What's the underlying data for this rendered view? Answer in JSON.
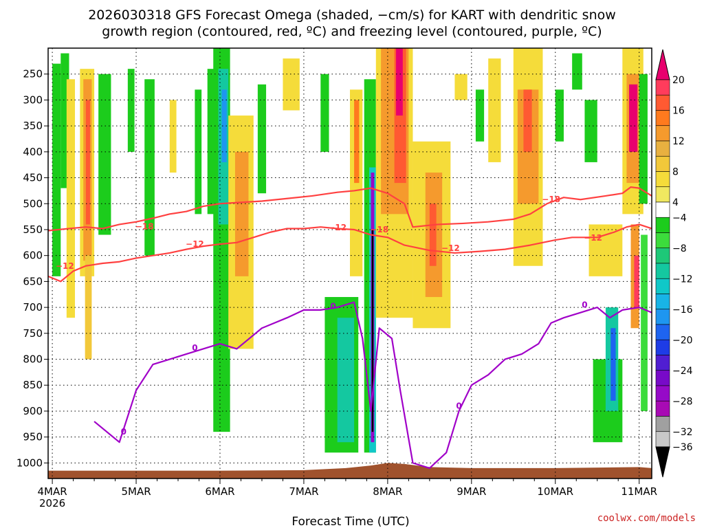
{
  "page": {
    "title_line1": "2026030318 GFS Forecast Omega (shaded, −cm/s) for KART with dendritic snow",
    "title_line2": "growth region (contoured, red, ºC) and freezing level (contoured, purple, ºC)",
    "credit": "coolwx.com/models"
  },
  "chart_data": {
    "type": "heatmap",
    "title": "2026030318 GFS Forecast Omega (shaded, −cm/s) for KART with dendritic snow growth region (contoured, red, ºC) and freezing level (contoured, purple, ºC)",
    "xlabel": "Forecast Time (UTC)",
    "ylabel": "",
    "y_axis": {
      "unit": "hPa",
      "range": [
        1030,
        200
      ],
      "ticks": [
        250,
        300,
        350,
        400,
        450,
        500,
        550,
        600,
        650,
        700,
        750,
        800,
        850,
        900,
        950,
        1000
      ]
    },
    "x_axis": {
      "unit": "days since 2026-03-04 00 UTC",
      "range": [
        -0.05,
        7.15
      ],
      "ticks": [
        {
          "value": 0,
          "label": "4MAR",
          "sublabel": "2026"
        },
        {
          "value": 1,
          "label": "5MAR"
        },
        {
          "value": 2,
          "label": "6MAR"
        },
        {
          "value": 3,
          "label": "7MAR"
        },
        {
          "value": 4,
          "label": "8MAR"
        },
        {
          "value": 5,
          "label": "9MAR"
        },
        {
          "value": 6,
          "label": "10MAR"
        },
        {
          "value": 7,
          "label": "11MAR"
        }
      ],
      "grid": true
    },
    "colorbar": {
      "labels": [
        "20",
        "16",
        "12",
        "8",
        "4",
        "−4",
        "−8",
        "−12",
        "−16",
        "−20",
        "−24",
        "−28",
        "−32",
        "−36"
      ],
      "bins": [
        {
          "min": 20,
          "max": null,
          "color": "#e8006e"
        },
        {
          "min": 18,
          "max": 20,
          "color": "#ff3c5c"
        },
        {
          "min": 16,
          "max": 18,
          "color": "#ff5a32"
        },
        {
          "min": 14,
          "max": 16,
          "color": "#ff7a1e"
        },
        {
          "min": 12,
          "max": 14,
          "color": "#f59a2d"
        },
        {
          "min": 10,
          "max": 12,
          "color": "#e8b040"
        },
        {
          "min": 8,
          "max": 10,
          "color": "#f2c83a"
        },
        {
          "min": 6,
          "max": 8,
          "color": "#f5dc3a"
        },
        {
          "min": 4,
          "max": 6,
          "color": "#f0e860"
        },
        {
          "min": -4,
          "max": 4,
          "color": "#ffffff"
        },
        {
          "min": -6,
          "max": -4,
          "color": "#1ccc1c"
        },
        {
          "min": -8,
          "max": -6,
          "color": "#3cdc3c"
        },
        {
          "min": -10,
          "max": -8,
          "color": "#1ec878"
        },
        {
          "min": -12,
          "max": -10,
          "color": "#14c8a0"
        },
        {
          "min": -14,
          "max": -12,
          "color": "#10c8c8"
        },
        {
          "min": -16,
          "max": -14,
          "color": "#18b4e6"
        },
        {
          "min": -18,
          "max": -16,
          "color": "#1e96f0"
        },
        {
          "min": -20,
          "max": -18,
          "color": "#1e64f0"
        },
        {
          "min": -22,
          "max": -20,
          "color": "#1e3ce6"
        },
        {
          "min": -24,
          "max": -22,
          "color": "#501ed2"
        },
        {
          "min": -26,
          "max": -24,
          "color": "#780ac8"
        },
        {
          "min": -28,
          "max": -26,
          "color": "#960ac8"
        },
        {
          "min": -30,
          "max": -28,
          "color": "#a80ab4"
        },
        {
          "min": -32,
          "max": -30,
          "color": "#a0a0a0"
        },
        {
          "min": -34,
          "max": -32,
          "color": "#c8c8c8"
        },
        {
          "min": null,
          "max": -34,
          "color": "#000000"
        }
      ]
    },
    "omega_cells": [
      {
        "t0": 0.0,
        "t1": 0.1,
        "p0": 230,
        "p1": 640,
        "value": -6
      },
      {
        "t0": 0.1,
        "t1": 0.2,
        "p0": 210,
        "p1": 470,
        "value": -6
      },
      {
        "t0": 0.17,
        "t1": 0.27,
        "p0": 260,
        "p1": 720,
        "value": 6
      },
      {
        "t0": 0.33,
        "t1": 0.5,
        "p0": 240,
        "p1": 640,
        "value": 6
      },
      {
        "t0": 0.37,
        "t1": 0.47,
        "p0": 260,
        "p1": 610,
        "value": 12
      },
      {
        "t0": 0.4,
        "t1": 0.45,
        "p0": 300,
        "p1": 540,
        "value": 16
      },
      {
        "t0": 0.39,
        "t1": 0.47,
        "p0": 600,
        "p1": 800,
        "value": 8
      },
      {
        "t0": 0.55,
        "t1": 0.7,
        "p0": 250,
        "p1": 560,
        "value": -6
      },
      {
        "t0": 0.9,
        "t1": 0.98,
        "p0": 240,
        "p1": 400,
        "value": -6
      },
      {
        "t0": 1.1,
        "t1": 1.22,
        "p0": 260,
        "p1": 600,
        "value": -6
      },
      {
        "t0": 1.4,
        "t1": 1.48,
        "p0": 300,
        "p1": 440,
        "value": 6
      },
      {
        "t0": 1.7,
        "t1": 1.78,
        "p0": 280,
        "p1": 520,
        "value": -6
      },
      {
        "t0": 1.85,
        "t1": 1.95,
        "p0": 240,
        "p1": 520,
        "value": -6
      },
      {
        "t0": 1.92,
        "t1": 2.12,
        "p0": 200,
        "p1": 940,
        "value": -6
      },
      {
        "t0": 1.98,
        "t1": 2.1,
        "p0": 240,
        "p1": 540,
        "value": -12
      },
      {
        "t0": 2.02,
        "t1": 2.08,
        "p0": 280,
        "p1": 420,
        "value": -17
      },
      {
        "t0": 2.1,
        "t1": 2.4,
        "p0": 330,
        "p1": 780,
        "value": 6
      },
      {
        "t0": 2.18,
        "t1": 2.34,
        "p0": 400,
        "p1": 640,
        "value": 12
      },
      {
        "t0": 2.45,
        "t1": 2.55,
        "p0": 270,
        "p1": 480,
        "value": -6
      },
      {
        "t0": 2.75,
        "t1": 2.95,
        "p0": 220,
        "p1": 320,
        "value": 6
      },
      {
        "t0": 3.2,
        "t1": 3.3,
        "p0": 250,
        "p1": 400,
        "value": -6
      },
      {
        "t0": 3.25,
        "t1": 3.65,
        "p0": 680,
        "p1": 980,
        "value": -6
      },
      {
        "t0": 3.4,
        "t1": 3.6,
        "p0": 720,
        "p1": 960,
        "value": -12
      },
      {
        "t0": 3.55,
        "t1": 3.7,
        "p0": 280,
        "p1": 640,
        "value": 6
      },
      {
        "t0": 3.6,
        "t1": 3.66,
        "p0": 300,
        "p1": 460,
        "value": 14
      },
      {
        "t0": 3.72,
        "t1": 3.86,
        "p0": 260,
        "p1": 980,
        "value": -6
      },
      {
        "t0": 3.78,
        "t1": 3.86,
        "p0": 430,
        "p1": 980,
        "value": -14
      },
      {
        "t0": 3.8,
        "t1": 3.84,
        "p0": 440,
        "p1": 960,
        "value": -28
      },
      {
        "t0": 3.81,
        "t1": 3.83,
        "p0": 550,
        "p1": 940,
        "value": -36
      },
      {
        "t0": 3.86,
        "t1": 4.3,
        "p0": 200,
        "p1": 720,
        "value": 6
      },
      {
        "t0": 3.92,
        "t1": 4.25,
        "p0": 200,
        "p1": 520,
        "value": 12
      },
      {
        "t0": 4.08,
        "t1": 4.22,
        "p0": 200,
        "p1": 460,
        "value": 17
      },
      {
        "t0": 4.1,
        "t1": 4.18,
        "p0": 200,
        "p1": 330,
        "value": 21
      },
      {
        "t0": 4.3,
        "t1": 4.75,
        "p0": 380,
        "p1": 740,
        "value": 6
      },
      {
        "t0": 4.45,
        "t1": 4.65,
        "p0": 440,
        "p1": 680,
        "value": 12
      },
      {
        "t0": 4.5,
        "t1": 4.58,
        "p0": 500,
        "p1": 620,
        "value": 16
      },
      {
        "t0": 4.8,
        "t1": 4.95,
        "p0": 250,
        "p1": 300,
        "value": 6
      },
      {
        "t0": 5.05,
        "t1": 5.15,
        "p0": 280,
        "p1": 380,
        "value": -6
      },
      {
        "t0": 5.2,
        "t1": 5.35,
        "p0": 220,
        "p1": 420,
        "value": 6
      },
      {
        "t0": 5.5,
        "t1": 5.85,
        "p0": 200,
        "p1": 620,
        "value": 6
      },
      {
        "t0": 5.55,
        "t1": 5.8,
        "p0": 280,
        "p1": 500,
        "value": 12
      },
      {
        "t0": 5.62,
        "t1": 5.72,
        "p0": 280,
        "p1": 400,
        "value": 16
      },
      {
        "t0": 6.0,
        "t1": 6.1,
        "p0": 280,
        "p1": 380,
        "value": -6
      },
      {
        "t0": 6.2,
        "t1": 6.32,
        "p0": 210,
        "p1": 280,
        "value": -6
      },
      {
        "t0": 6.35,
        "t1": 6.5,
        "p0": 300,
        "p1": 420,
        "value": -6
      },
      {
        "t0": 6.4,
        "t1": 6.8,
        "p0": 540,
        "p1": 640,
        "value": 6
      },
      {
        "t0": 6.45,
        "t1": 6.8,
        "p0": 800,
        "p1": 960,
        "value": -6
      },
      {
        "t0": 6.6,
        "t1": 6.75,
        "p0": 700,
        "p1": 900,
        "value": -12
      },
      {
        "t0": 6.66,
        "t1": 6.72,
        "p0": 740,
        "p1": 880,
        "value": -20
      },
      {
        "t0": 6.8,
        "t1": 7.05,
        "p0": 200,
        "p1": 520,
        "value": 6
      },
      {
        "t0": 6.85,
        "t1": 7.0,
        "p0": 250,
        "p1": 460,
        "value": 12
      },
      {
        "t0": 6.88,
        "t1": 6.98,
        "p0": 270,
        "p1": 400,
        "value": 20
      },
      {
        "t0": 6.9,
        "t1": 7.0,
        "p0": 540,
        "p1": 740,
        "value": 12
      },
      {
        "t0": 6.94,
        "t1": 7.0,
        "p0": 600,
        "p1": 700,
        "value": 18
      },
      {
        "t0": 7.0,
        "t1": 7.1,
        "p0": 250,
        "p1": 500,
        "value": -6
      },
      {
        "t0": 7.02,
        "t1": 7.1,
        "p0": 560,
        "p1": 900,
        "value": -8
      }
    ],
    "series": [
      {
        "name": "-18",
        "color": "#ff4040",
        "label": "−18",
        "label_positions": [
          {
            "t": 1.1,
            "p": 544
          },
          {
            "t": 3.9,
            "p": 550
          },
          {
            "t": 5.95,
            "p": 492
          }
        ],
        "points": [
          [
            -0.05,
            552
          ],
          [
            0.2,
            548
          ],
          [
            0.4,
            545
          ],
          [
            0.6,
            548
          ],
          [
            0.8,
            540
          ],
          [
            1.0,
            535
          ],
          [
            1.2,
            528
          ],
          [
            1.4,
            520
          ],
          [
            1.6,
            515
          ],
          [
            1.8,
            505
          ],
          [
            2.0,
            500
          ],
          [
            2.2,
            498
          ],
          [
            2.5,
            495
          ],
          [
            2.8,
            490
          ],
          [
            3.1,
            485
          ],
          [
            3.4,
            478
          ],
          [
            3.6,
            475
          ],
          [
            3.8,
            470
          ],
          [
            4.0,
            480
          ],
          [
            4.2,
            500
          ],
          [
            4.3,
            545
          ],
          [
            4.6,
            540
          ],
          [
            4.9,
            538
          ],
          [
            5.2,
            535
          ],
          [
            5.5,
            530
          ],
          [
            5.7,
            520
          ],
          [
            5.9,
            500
          ],
          [
            6.1,
            488
          ],
          [
            6.3,
            492
          ],
          [
            6.6,
            485
          ],
          [
            6.8,
            480
          ],
          [
            6.9,
            468
          ],
          [
            7.0,
            470
          ],
          [
            7.15,
            485
          ]
        ]
      },
      {
        "name": "-12",
        "color": "#ff4040",
        "label": "−12",
        "label_positions": [
          {
            "t": 0.15,
            "p": 620
          },
          {
            "t": 1.7,
            "p": 578
          },
          {
            "t": 3.4,
            "p": 546
          },
          {
            "t": 4.75,
            "p": 586
          },
          {
            "t": 6.45,
            "p": 566
          }
        ],
        "points": [
          [
            -0.05,
            640
          ],
          [
            0.1,
            650
          ],
          [
            0.25,
            630
          ],
          [
            0.4,
            620
          ],
          [
            0.6,
            615
          ],
          [
            0.8,
            612
          ],
          [
            1.0,
            605
          ],
          [
            1.2,
            600
          ],
          [
            1.4,
            595
          ],
          [
            1.6,
            588
          ],
          [
            1.8,
            582
          ],
          [
            2.0,
            578
          ],
          [
            2.2,
            575
          ],
          [
            2.4,
            565
          ],
          [
            2.6,
            555
          ],
          [
            2.8,
            548
          ],
          [
            3.0,
            548
          ],
          [
            3.2,
            545
          ],
          [
            3.4,
            548
          ],
          [
            3.6,
            550
          ],
          [
            3.8,
            560
          ],
          [
            4.0,
            565
          ],
          [
            4.2,
            580
          ],
          [
            4.5,
            590
          ],
          [
            4.8,
            595
          ],
          [
            5.1,
            592
          ],
          [
            5.4,
            588
          ],
          [
            5.7,
            580
          ],
          [
            6.0,
            570
          ],
          [
            6.2,
            565
          ],
          [
            6.5,
            565
          ],
          [
            6.7,
            555
          ],
          [
            6.85,
            545
          ],
          [
            7.0,
            540
          ],
          [
            7.15,
            548
          ]
        ]
      },
      {
        "name": "0",
        "color": "#a000c8",
        "label": "0",
        "label_positions": [
          {
            "t": 0.85,
            "p": 940
          },
          {
            "t": 1.7,
            "p": 778
          },
          {
            "t": 3.35,
            "p": 698
          },
          {
            "t": 4.85,
            "p": 890
          },
          {
            "t": 6.35,
            "p": 695
          }
        ],
        "points": [
          [
            0.5,
            920
          ],
          [
            0.8,
            960
          ],
          [
            1.0,
            860
          ],
          [
            1.2,
            810
          ],
          [
            1.4,
            800
          ],
          [
            1.6,
            790
          ],
          [
            1.8,
            780
          ],
          [
            2.0,
            770
          ],
          [
            2.2,
            780
          ],
          [
            2.5,
            740
          ],
          [
            2.8,
            720
          ],
          [
            3.0,
            705
          ],
          [
            3.2,
            705
          ],
          [
            3.4,
            700
          ],
          [
            3.6,
            690
          ],
          [
            3.7,
            760
          ],
          [
            3.8,
            900
          ],
          [
            3.9,
            740
          ],
          [
            4.05,
            760
          ],
          [
            4.15,
            860
          ],
          [
            4.3,
            1000
          ],
          [
            4.5,
            1010
          ],
          [
            4.7,
            980
          ],
          [
            4.85,
            900
          ],
          [
            5.0,
            850
          ],
          [
            5.2,
            830
          ],
          [
            5.4,
            800
          ],
          [
            5.6,
            790
          ],
          [
            5.8,
            770
          ],
          [
            5.95,
            730
          ],
          [
            6.1,
            720
          ],
          [
            6.3,
            710
          ],
          [
            6.5,
            700
          ],
          [
            6.65,
            720
          ],
          [
            6.8,
            705
          ],
          [
            7.0,
            700
          ],
          [
            7.15,
            710
          ]
        ]
      }
    ],
    "terrain": {
      "color": "#a0522d",
      "points": [
        [
          -0.05,
          1015
        ],
        [
          0.5,
          1015
        ],
        [
          1.0,
          1015
        ],
        [
          2.0,
          1015
        ],
        [
          3.0,
          1014
        ],
        [
          3.5,
          1010
        ],
        [
          3.8,
          1005
        ],
        [
          4.0,
          1000
        ],
        [
          4.2,
          1002
        ],
        [
          4.5,
          1008
        ],
        [
          5.0,
          1010
        ],
        [
          6.0,
          1010
        ],
        [
          7.0,
          1008
        ],
        [
          7.15,
          1010
        ]
      ],
      "bottom": 1030
    }
  }
}
